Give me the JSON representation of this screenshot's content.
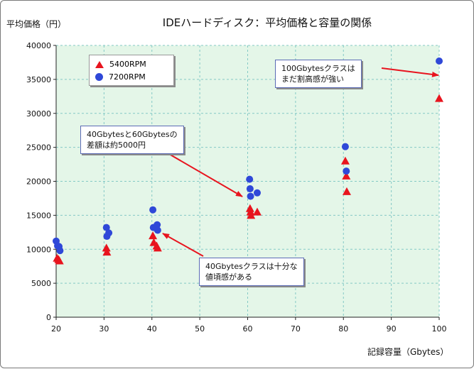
{
  "title": "IDEハードディスク：平均価格と容量の関係",
  "colors": {
    "triangle": "#e8141e",
    "circle": "#2f48d8",
    "plot_bg": "#e4f6e8",
    "grid": "#84c9c5",
    "arrow": "#e8141e"
  },
  "callouts": {
    "c100": "100Gbytesクラスは\nまだ割高感が強い",
    "c40_60": "40Gbytesと60Gbytesの\n差額は約5000円",
    "c40": "40Gbytesクラスは十分な\n値頃感がある"
  },
  "chart_data": {
    "type": "scatter",
    "xlabel": "記録容量（Gbytes）",
    "ylabel": "平均価格（円）",
    "xlim": [
      20,
      100
    ],
    "ylim": [
      0,
      40000
    ],
    "xticks": [
      "20",
      "30",
      "40",
      "50",
      "60",
      "70",
      "80",
      "90",
      "100"
    ],
    "yticks": [
      "0",
      "5000",
      "10000",
      "15000",
      "20000",
      "25000",
      "30000",
      "35000",
      "40000"
    ],
    "grid": true,
    "legend": "top-left",
    "series": [
      {
        "name": "5400RPM",
        "marker": "triangle",
        "points": [
          [
            20.2,
            8700
          ],
          [
            20.5,
            8500
          ],
          [
            20.7,
            8300
          ],
          [
            30.5,
            10200
          ],
          [
            30.6,
            9600
          ],
          [
            40.2,
            12000
          ],
          [
            40.4,
            11000
          ],
          [
            41.0,
            10500
          ],
          [
            41.2,
            10200
          ],
          [
            60.5,
            16000
          ],
          [
            60.6,
            15500
          ],
          [
            60.7,
            15000
          ],
          [
            62.0,
            15500
          ],
          [
            80.4,
            23000
          ],
          [
            80.6,
            20800
          ],
          [
            80.7,
            18500
          ],
          [
            100.0,
            32200
          ]
        ]
      },
      {
        "name": "7200RPM",
        "marker": "circle",
        "points": [
          [
            20.0,
            11200
          ],
          [
            20.3,
            10500
          ],
          [
            20.6,
            10400
          ],
          [
            20.8,
            9800
          ],
          [
            30.5,
            13200
          ],
          [
            30.6,
            11900
          ],
          [
            31.0,
            12400
          ],
          [
            40.2,
            15800
          ],
          [
            40.3,
            13200
          ],
          [
            40.9,
            13200
          ],
          [
            41.1,
            13600
          ],
          [
            41.2,
            12800
          ],
          [
            60.4,
            20300
          ],
          [
            60.5,
            18900
          ],
          [
            60.6,
            17800
          ],
          [
            62.0,
            18300
          ],
          [
            80.4,
            25100
          ],
          [
            80.6,
            21500
          ],
          [
            100.0,
            37700
          ]
        ]
      }
    ]
  }
}
